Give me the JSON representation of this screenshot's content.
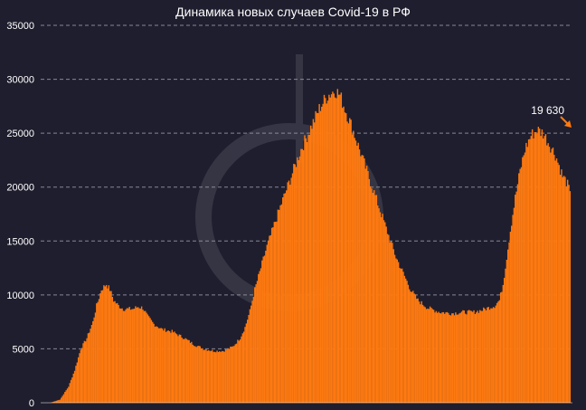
{
  "chart_data": {
    "type": "bar",
    "title": "Динамика новых случаев Covid-19 в РФ",
    "xlabel": "",
    "ylabel": "",
    "ylim": [
      0,
      35000
    ],
    "yticks": [
      0,
      5000,
      10000,
      15000,
      20000,
      25000,
      30000,
      35000
    ],
    "ytick_labels": [
      "0",
      "5000",
      "10000",
      "15000",
      "20000",
      "25000",
      "30000",
      "35000"
    ],
    "grid": true,
    "bar_color": "#ff7a10",
    "background_color": "#1f1e2e",
    "grid_color": "#9a99a8",
    "annotation": {
      "text": "19 630",
      "value": 19630,
      "color": "#ff7a10"
    },
    "profile_points": [
      [
        0,
        0
      ],
      [
        8,
        300
      ],
      [
        15,
        1500
      ],
      [
        20,
        3000
      ],
      [
        25,
        5000
      ],
      [
        30,
        6000
      ],
      [
        35,
        7500
      ],
      [
        38,
        9000
      ],
      [
        42,
        10500
      ],
      [
        46,
        11000
      ],
      [
        49,
        10500
      ],
      [
        52,
        9500
      ],
      [
        56,
        9000
      ],
      [
        60,
        8700
      ],
      [
        68,
        8700
      ],
      [
        72,
        8900
      ],
      [
        76,
        8800
      ],
      [
        80,
        8000
      ],
      [
        85,
        7300
      ],
      [
        92,
        6800
      ],
      [
        100,
        6600
      ],
      [
        110,
        6000
      ],
      [
        118,
        5400
      ],
      [
        126,
        5000
      ],
      [
        134,
        4800
      ],
      [
        142,
        4800
      ],
      [
        150,
        5200
      ],
      [
        156,
        6000
      ],
      [
        160,
        7000
      ],
      [
        164,
        8500
      ],
      [
        168,
        10500
      ],
      [
        173,
        12500
      ],
      [
        178,
        14500
      ],
      [
        184,
        16500
      ],
      [
        190,
        18500
      ],
      [
        198,
        21000
      ],
      [
        206,
        23500
      ],
      [
        214,
        25500
      ],
      [
        222,
        27500
      ],
      [
        228,
        28500
      ],
      [
        234,
        29000
      ],
      [
        238,
        28500
      ],
      [
        243,
        27000
      ],
      [
        248,
        25500
      ],
      [
        254,
        23500
      ],
      [
        260,
        21500
      ],
      [
        266,
        19500
      ],
      [
        272,
        17500
      ],
      [
        278,
        15500
      ],
      [
        284,
        13500
      ],
      [
        290,
        12000
      ],
      [
        296,
        10500
      ],
      [
        302,
        9500
      ],
      [
        310,
        8800
      ],
      [
        320,
        8400
      ],
      [
        330,
        8300
      ],
      [
        340,
        8400
      ],
      [
        348,
        8400
      ],
      [
        355,
        8600
      ],
      [
        360,
        8800
      ],
      [
        365,
        9000
      ],
      [
        369,
        9500
      ],
      [
        372,
        11000
      ],
      [
        375,
        13500
      ],
      [
        378,
        16000
      ],
      [
        382,
        19000
      ],
      [
        386,
        21500
      ],
      [
        390,
        23500
      ],
      [
        395,
        24800
      ],
      [
        400,
        25300
      ],
      [
        405,
        25000
      ],
      [
        410,
        24000
      ],
      [
        415,
        23000
      ],
      [
        418,
        22000
      ],
      [
        421,
        21000
      ],
      [
        424,
        20500
      ],
      [
        427,
        19630
      ]
    ]
  }
}
